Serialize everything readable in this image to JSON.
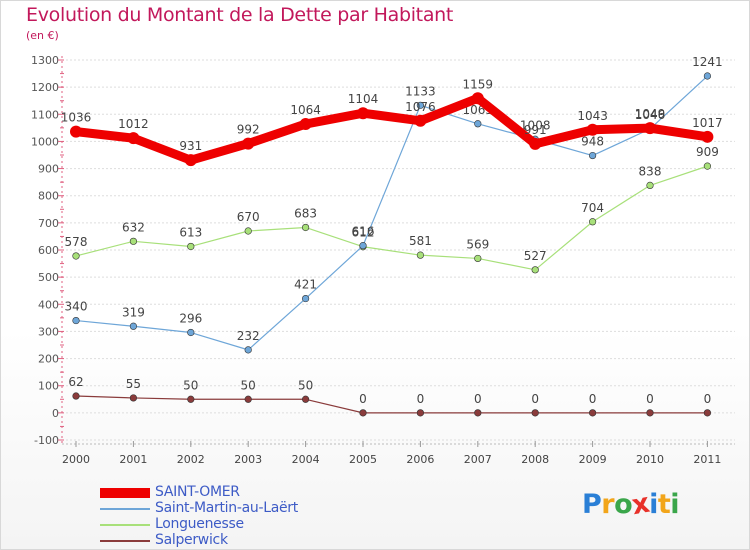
{
  "chart_data": {
    "type": "line",
    "title": "Evolution du Montant de la Dette par Habitant",
    "subtitle": "(en €)",
    "x": [
      "2000",
      "2001",
      "2002",
      "2003",
      "2004",
      "2005",
      "2006",
      "2007",
      "2008",
      "2009",
      "2010",
      "2011"
    ],
    "ylim": [
      -100,
      1300
    ],
    "yticks": [
      "-100",
      "0",
      "100",
      "200",
      "300",
      "400",
      "500",
      "600",
      "700",
      "800",
      "900",
      "1000",
      "1100",
      "1200",
      "1300"
    ],
    "grid": "horizontal",
    "legend_position": "bottom-left",
    "series": [
      {
        "name": "SAINT-OMER",
        "color": "#ee0000",
        "values": [
          1036,
          1012,
          931,
          992,
          1064,
          1104,
          1076,
          1159,
          991,
          1043,
          1049,
          1017
        ]
      },
      {
        "name": "Saint-Martin-au-Laërt",
        "color": "#6ea6d8",
        "values": [
          340,
          319,
          296,
          232,
          421,
          616,
          1133,
          1065,
          1008,
          948,
          1046,
          1241
        ]
      },
      {
        "name": "Longuenesse",
        "color": "#a8e07a",
        "values": [
          578,
          632,
          613,
          670,
          683,
          612,
          581,
          569,
          527,
          704,
          838,
          909
        ]
      },
      {
        "name": "Salperwick",
        "color": "#8a3b3b",
        "values": [
          62,
          55,
          50,
          50,
          50,
          0,
          0,
          0,
          0,
          0,
          0,
          0
        ]
      }
    ]
  },
  "logo": {
    "letters": [
      "P",
      "r",
      "o",
      "x",
      "i",
      "t",
      "i"
    ],
    "colors": [
      "#2a7fd6",
      "#f2a51a",
      "#3aa64a",
      "#e8312a",
      "#2a7fd6",
      "#f2a51a",
      "#3aa64a"
    ]
  }
}
